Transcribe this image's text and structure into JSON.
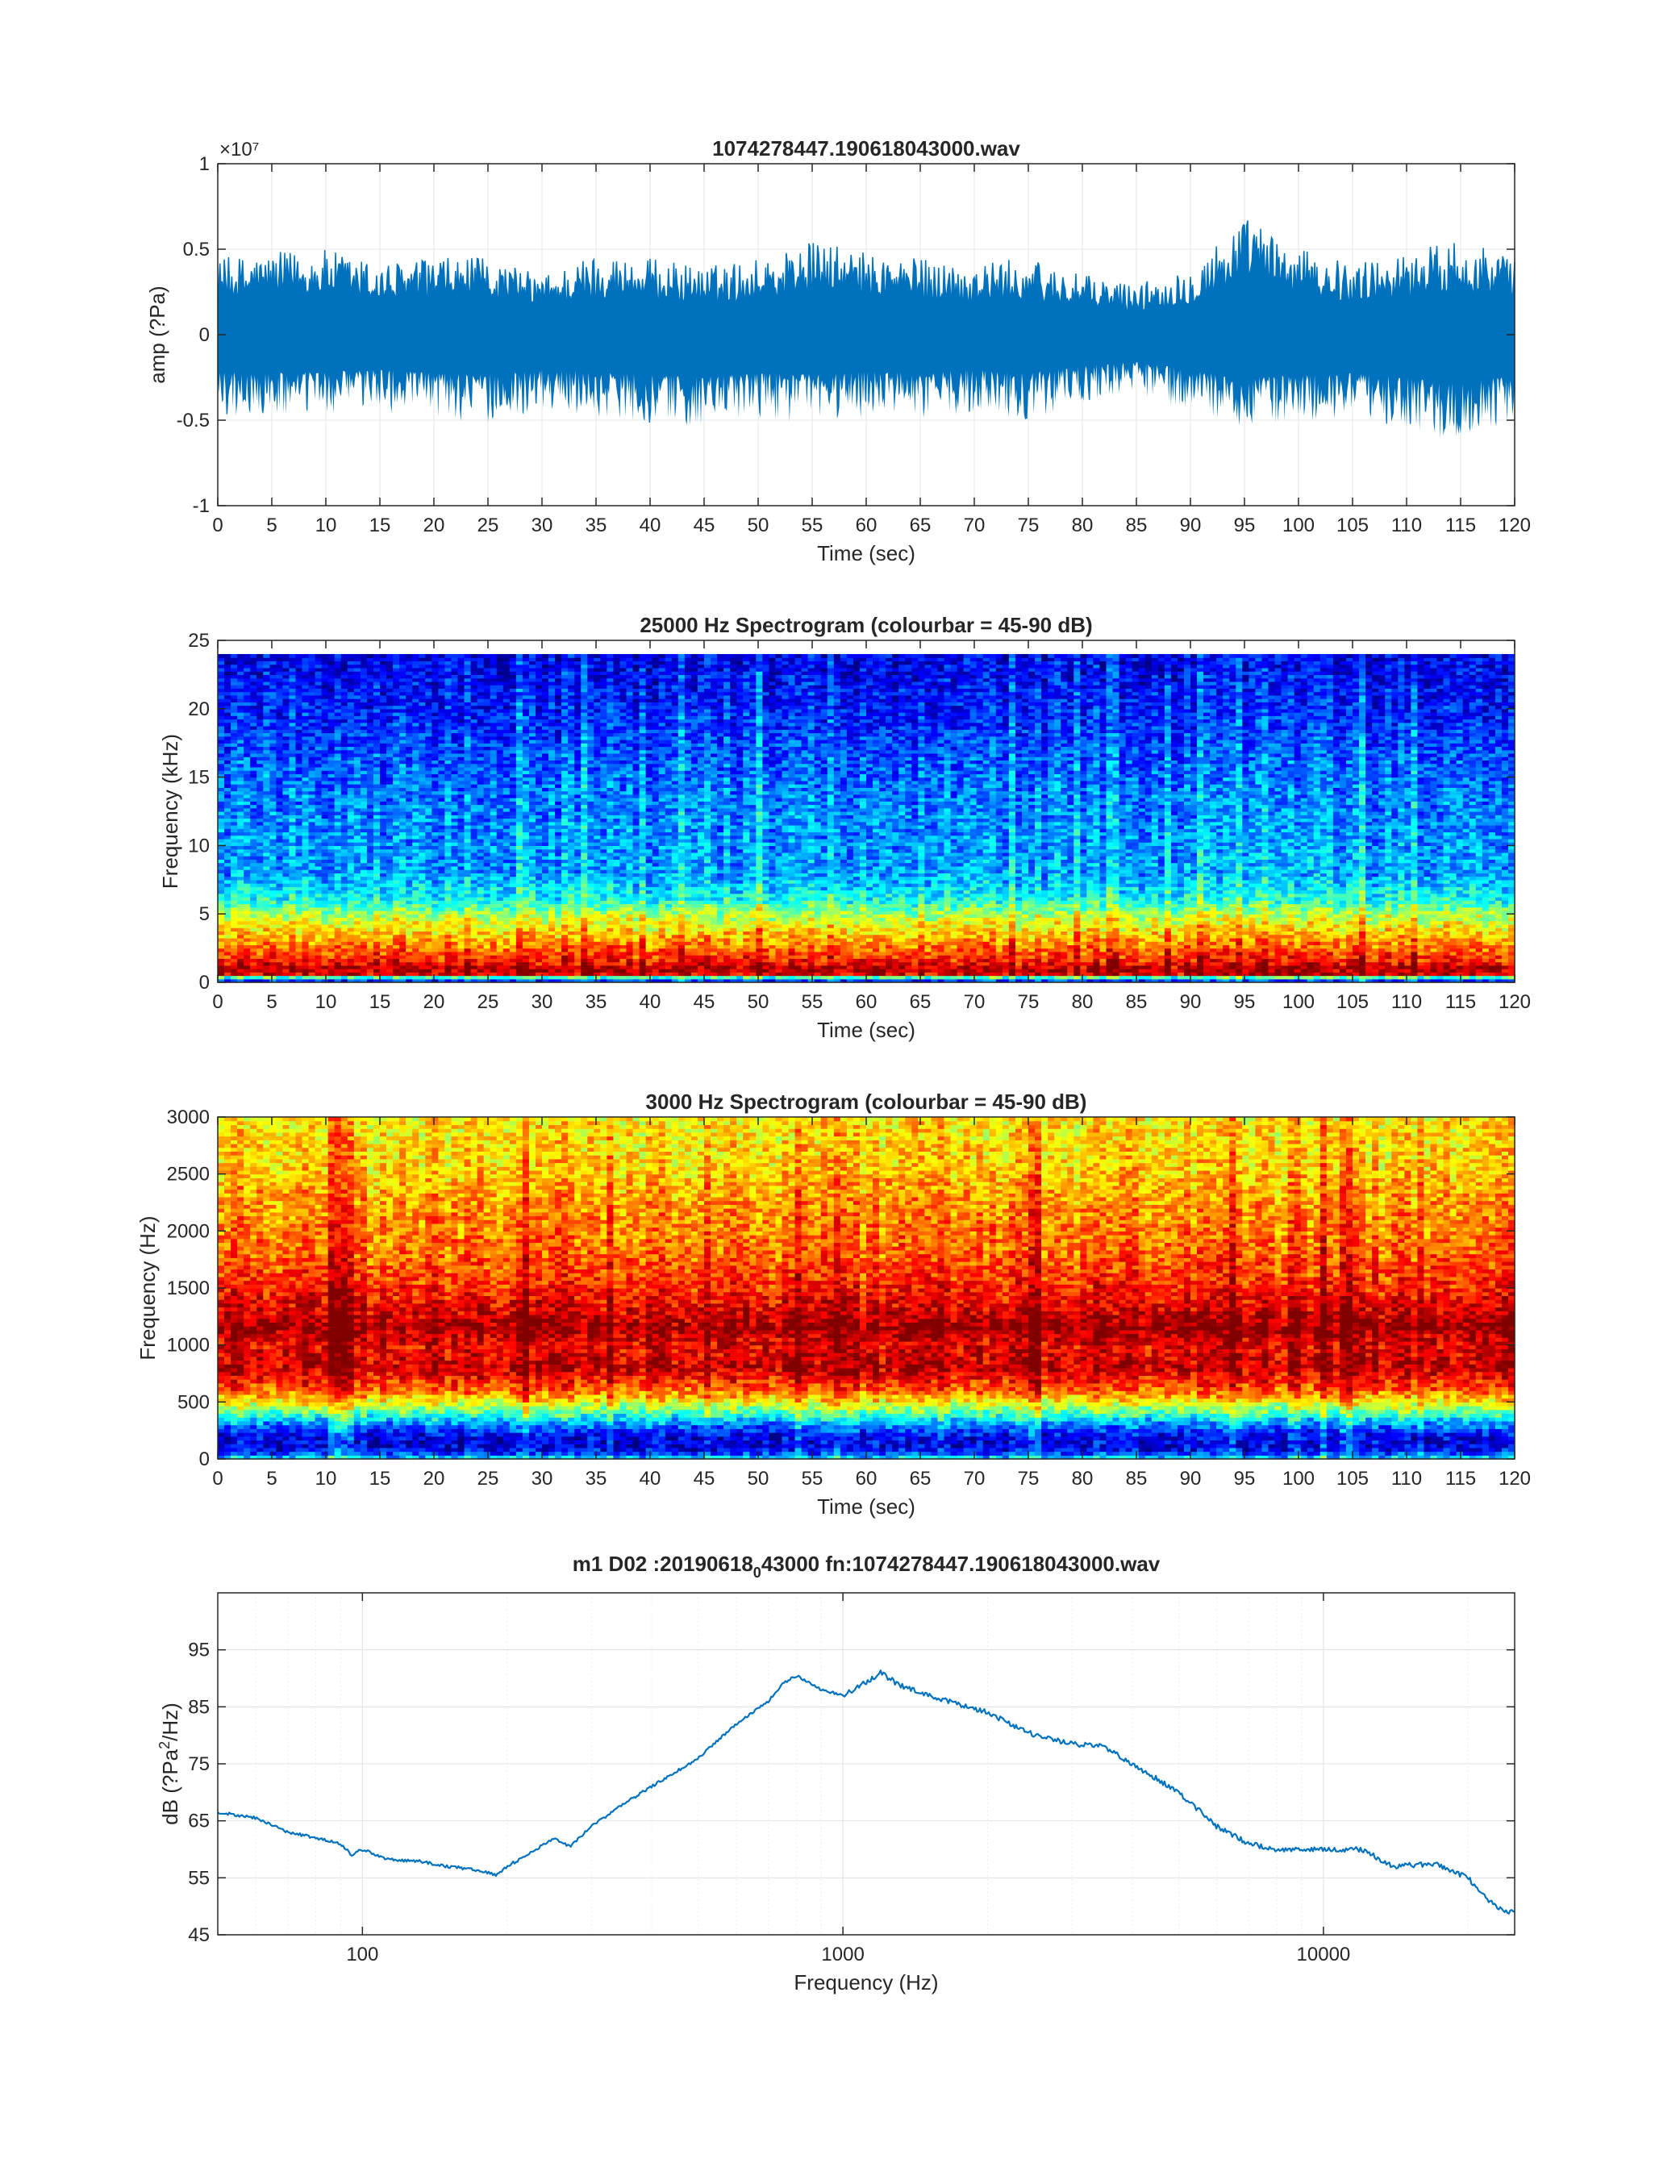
{
  "chart_data": [
    {
      "type": "line",
      "title": "1074278447.190618043000.wav",
      "xlabel": "Time (sec)",
      "ylabel": "amp (?Pa)",
      "xlim": [
        0,
        120
      ],
      "ylim": [
        -1,
        1
      ],
      "y_exponent_label": "×10⁷",
      "x_ticks": [
        0,
        5,
        10,
        15,
        20,
        25,
        30,
        35,
        40,
        45,
        50,
        55,
        60,
        65,
        70,
        75,
        80,
        85,
        90,
        95,
        100,
        105,
        110,
        115,
        120
      ],
      "y_ticks": [
        -1,
        -0.5,
        0,
        0.5,
        1
      ],
      "grid": true,
      "series": [
        {
          "color": "#0072BD",
          "envelope_x": [
            0,
            5,
            10,
            15,
            20,
            25,
            30,
            35,
            40,
            45,
            50,
            55,
            60,
            65,
            70,
            75,
            80,
            85,
            90,
            95,
            100,
            105,
            110,
            115,
            120
          ],
          "envelope_max": [
            0.45,
            0.48,
            0.5,
            0.42,
            0.45,
            0.45,
            0.35,
            0.48,
            0.45,
            0.4,
            0.45,
            0.55,
            0.48,
            0.45,
            0.42,
            0.45,
            0.35,
            0.3,
            0.4,
            0.7,
            0.5,
            0.42,
            0.48,
            0.58,
            0.45
          ],
          "envelope_min": [
            -0.48,
            -0.5,
            -0.48,
            -0.45,
            -0.5,
            -0.52,
            -0.45,
            -0.48,
            -0.52,
            -0.55,
            -0.5,
            -0.52,
            -0.48,
            -0.5,
            -0.45,
            -0.5,
            -0.4,
            -0.35,
            -0.45,
            -0.55,
            -0.52,
            -0.5,
            -0.55,
            -0.65,
            -0.5
          ]
        }
      ]
    },
    {
      "type": "heatmap",
      "title": "25000 Hz Spectrogram (colourbar = 45-90 dB)",
      "xlabel": "Time (sec)",
      "ylabel": "Frequency (kHz)",
      "xlim": [
        0,
        120
      ],
      "ylim": [
        0,
        25
      ],
      "data_ymax": 24,
      "x_ticks": [
        0,
        5,
        10,
        15,
        20,
        25,
        30,
        35,
        40,
        45,
        50,
        55,
        60,
        65,
        70,
        75,
        80,
        85,
        90,
        95,
        100,
        105,
        110,
        115,
        120
      ],
      "y_ticks": [
        0,
        5,
        10,
        15,
        20,
        25
      ],
      "colormap": "jet",
      "clim_db": [
        45,
        90
      ],
      "level_profile": {
        "freq": [
          0,
          0.3,
          0.6,
          1.0,
          1.5,
          2.5,
          4.0,
          5.0,
          6.0,
          8.0,
          12.0,
          16.0,
          20.0,
          24.0
        ],
        "db": [
          50,
          58,
          86,
          88,
          84,
          80,
          74,
          70,
          63,
          58,
          57,
          55,
          52,
          50
        ]
      }
    },
    {
      "type": "heatmap",
      "title": "3000 Hz Spectrogram (colourbar = 45-90 dB)",
      "xlabel": "Time (sec)",
      "ylabel": "Frequency (Hz)",
      "xlim": [
        0,
        120
      ],
      "ylim": [
        0,
        3000
      ],
      "x_ticks": [
        0,
        5,
        10,
        15,
        20,
        25,
        30,
        35,
        40,
        45,
        50,
        55,
        60,
        65,
        70,
        75,
        80,
        85,
        90,
        95,
        100,
        105,
        110,
        115,
        120
      ],
      "y_ticks": [
        0,
        500,
        1000,
        1500,
        2000,
        2500,
        3000
      ],
      "colormap": "jet",
      "clim_db": [
        45,
        90
      ],
      "level_profile": {
        "freq": [
          0,
          60,
          120,
          200,
          300,
          400,
          500,
          600,
          800,
          1000,
          1150,
          1300,
          1500,
          1800,
          2200,
          2600,
          3000
        ],
        "db": [
          62,
          52,
          49,
          50,
          56,
          65,
          73,
          80,
          87,
          85,
          89,
          86,
          83,
          80,
          78,
          75,
          74
        ]
      }
    },
    {
      "type": "line",
      "title_main": "m1 D02 :20190618",
      "title_sub": "0",
      "title_rest": "43000 fn:1074278447.190618043000.wav",
      "xlabel": "Frequency (Hz)",
      "ylabel_pre": "dB  (?Pa",
      "ylabel_sup": "2",
      "ylabel_post": "/Hz)",
      "x_scale": "log",
      "xlim": [
        50,
        25000
      ],
      "ylim": [
        45,
        105
      ],
      "x_ticks": [
        100,
        1000,
        10000
      ],
      "y_ticks": [
        45,
        55,
        65,
        75,
        85,
        95
      ],
      "grid": true,
      "series": [
        {
          "color": "#0072BD",
          "x": [
            50,
            60,
            70,
            80,
            90,
            95,
            100,
            110,
            120,
            130,
            150,
            170,
            190,
            200,
            220,
            250,
            270,
            300,
            350,
            400,
            500,
            600,
            700,
            750,
            800,
            900,
            1000,
            1100,
            1200,
            1300,
            1500,
            2000,
            2500,
            3000,
            3500,
            4000,
            5000,
            6000,
            7000,
            8000,
            10000,
            12000,
            14000,
            17000,
            20000,
            22000,
            24000
          ],
          "y": [
            66.5,
            65.5,
            63,
            62,
            61,
            59,
            60,
            58.5,
            58,
            58,
            57,
            56.5,
            55.5,
            57,
            59,
            62,
            60.5,
            64,
            68,
            71,
            76,
            82,
            86,
            89,
            90.5,
            88,
            87,
            89,
            91,
            89,
            87,
            84,
            80,
            78.5,
            78,
            75,
            70,
            64,
            61,
            60,
            60,
            60,
            57,
            57.5,
            55,
            51,
            49
          ]
        }
      ]
    }
  ]
}
